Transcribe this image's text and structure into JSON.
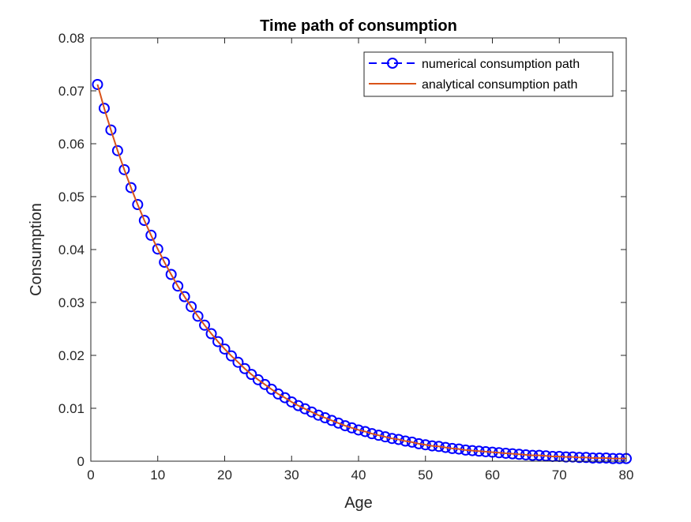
{
  "chart_data": {
    "type": "line",
    "title": "Time path of consumption",
    "xlabel": "Age",
    "ylabel": "Consumption",
    "xlim": [
      0,
      80
    ],
    "ylim": [
      0,
      0.08
    ],
    "xticks": [
      0,
      10,
      20,
      30,
      40,
      50,
      60,
      70,
      80
    ],
    "xtick_labels": [
      "0",
      "10",
      "20",
      "30",
      "40",
      "50",
      "60",
      "70",
      "80"
    ],
    "yticks": [
      0,
      0.01,
      0.02,
      0.03,
      0.04,
      0.05,
      0.06,
      0.07,
      0.08
    ],
    "ytick_labels": [
      "0",
      "0.01",
      "0.02",
      "0.03",
      "0.04",
      "0.05",
      "0.06",
      "0.07",
      "0.08"
    ],
    "grid": false,
    "legend_position": "top-right",
    "x": [
      1,
      2,
      3,
      4,
      5,
      6,
      7,
      8,
      9,
      10,
      11,
      12,
      13,
      14,
      15,
      16,
      17,
      18,
      19,
      20,
      21,
      22,
      23,
      24,
      25,
      26,
      27,
      28,
      29,
      30,
      31,
      32,
      33,
      34,
      35,
      36,
      37,
      38,
      39,
      40,
      41,
      42,
      43,
      44,
      45,
      46,
      47,
      48,
      49,
      50,
      51,
      52,
      53,
      54,
      55,
      56,
      57,
      58,
      59,
      60,
      61,
      62,
      63,
      64,
      65,
      66,
      67,
      68,
      69,
      70,
      71,
      72,
      73,
      74,
      75,
      76,
      77,
      78,
      79,
      80
    ],
    "series": [
      {
        "name": "numerical consumption path",
        "style": "dashed-circle-markers",
        "color": "#0000ff",
        "values": [
          0.0712,
          0.0667,
          0.0626,
          0.0587,
          0.0551,
          0.0517,
          0.0485,
          0.0455,
          0.0427,
          0.0401,
          0.0376,
          0.0353,
          0.0331,
          0.0311,
          0.0292,
          0.0274,
          0.0257,
          0.0241,
          0.0226,
          0.0212,
          0.0199,
          0.0187,
          0.0175,
          0.0164,
          0.0154,
          0.0145,
          0.0136,
          0.0127,
          0.012,
          0.0112,
          0.0105,
          0.0099,
          0.0093,
          0.0087,
          0.0082,
          0.0077,
          0.0072,
          0.0067,
          0.0063,
          0.0059,
          0.0056,
          0.0052,
          0.0049,
          0.0046,
          0.0043,
          0.0041,
          0.0038,
          0.0036,
          0.0033,
          0.0031,
          0.0029,
          0.0028,
          0.0026,
          0.0024,
          0.0023,
          0.0021,
          0.002,
          0.0019,
          0.0018,
          0.0017,
          0.0016,
          0.0015,
          0.0014,
          0.0013,
          0.0012,
          0.0011,
          0.0011,
          0.001,
          0.0009,
          0.0009,
          0.0008,
          0.0008,
          0.0007,
          0.0007,
          0.0006,
          0.0006,
          0.0006,
          0.0005,
          0.0005,
          0.0005
        ]
      },
      {
        "name": "analytical consumption path",
        "style": "solid",
        "color": "#d95319",
        "values": [
          0.0712,
          0.0667,
          0.0626,
          0.0587,
          0.0551,
          0.0517,
          0.0485,
          0.0455,
          0.0427,
          0.0401,
          0.0376,
          0.0353,
          0.0331,
          0.0311,
          0.0292,
          0.0274,
          0.0257,
          0.0241,
          0.0226,
          0.0212,
          0.0199,
          0.0187,
          0.0175,
          0.0164,
          0.0154,
          0.0145,
          0.0136,
          0.0127,
          0.012,
          0.0112,
          0.0105,
          0.0099,
          0.0093,
          0.0087,
          0.0082,
          0.0077,
          0.0072,
          0.0067,
          0.0063,
          0.0059,
          0.0056,
          0.0052,
          0.0049,
          0.0046,
          0.0043,
          0.0041,
          0.0038,
          0.0036,
          0.0033,
          0.0031,
          0.0029,
          0.0028,
          0.0026,
          0.0024,
          0.0023,
          0.0021,
          0.002,
          0.0019,
          0.0018,
          0.0017,
          0.0016,
          0.0015,
          0.0014,
          0.0013,
          0.0012,
          0.0011,
          0.0011,
          0.001,
          0.0009,
          0.0009,
          0.0008,
          0.0008,
          0.0007,
          0.0007,
          0.0006,
          0.0006,
          0.0006,
          0.0005,
          0.0005,
          0.0005
        ]
      }
    ]
  }
}
